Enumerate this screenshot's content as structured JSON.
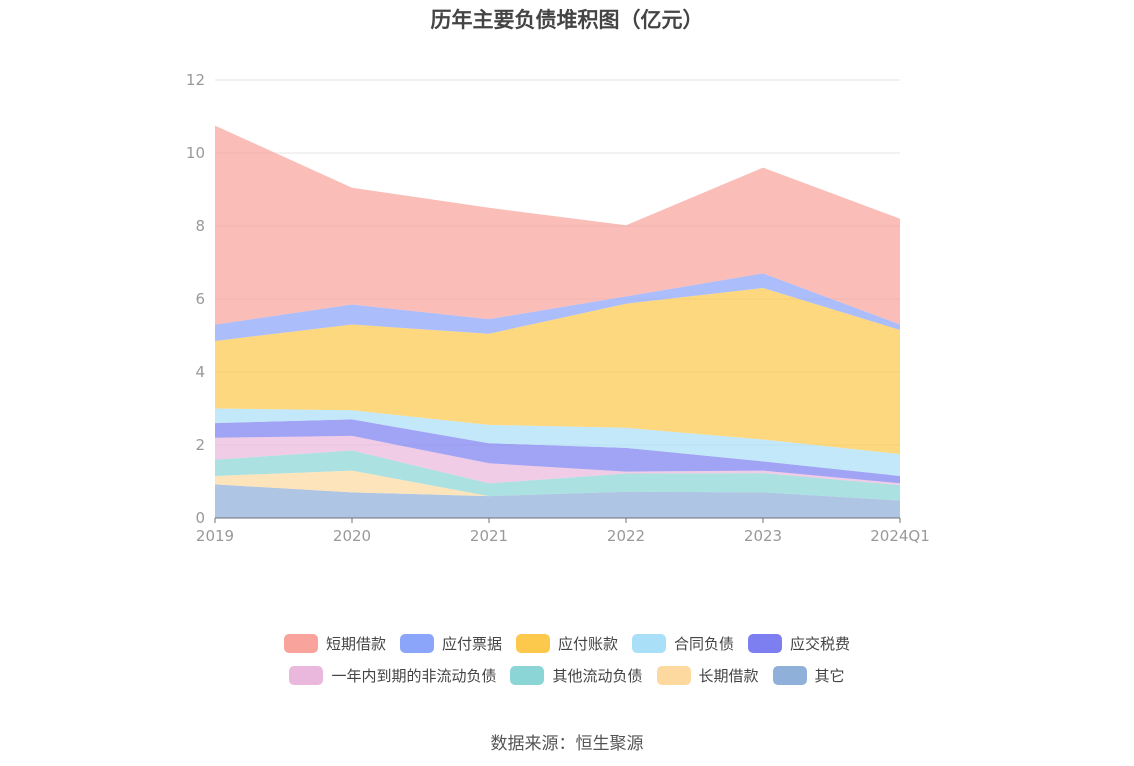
{
  "title": "历年主要负债堆积图（亿元）",
  "source": "数据来源：恒生聚源",
  "chart_data": {
    "type": "area",
    "stacked": true,
    "categories": [
      "2019",
      "2020",
      "2021",
      "2022",
      "2023",
      "2024Q1"
    ],
    "ylim": [
      0,
      12
    ],
    "yticks": [
      0,
      2,
      4,
      6,
      8,
      10,
      12
    ],
    "grid": true,
    "legend_position": "bottom",
    "series": [
      {
        "name": "其它",
        "color": "#8fb0d9",
        "values": [
          0.92,
          0.7,
          0.6,
          0.72,
          0.7,
          0.48
        ]
      },
      {
        "name": "长期借款",
        "color": "#fdd9a0",
        "values": [
          0.23,
          0.6,
          0.0,
          0.0,
          0.0,
          0.0
        ]
      },
      {
        "name": "其他流动负债",
        "color": "#8cd5d6",
        "values": [
          0.45,
          0.55,
          0.35,
          0.5,
          0.53,
          0.42
        ]
      },
      {
        "name": "一年内到期的非流动负债",
        "color": "#eab8dc",
        "values": [
          0.6,
          0.4,
          0.55,
          0.05,
          0.07,
          0.05
        ]
      },
      {
        "name": "应交税费",
        "color": "#7d7ff1",
        "values": [
          0.4,
          0.45,
          0.55,
          0.65,
          0.25,
          0.2
        ]
      },
      {
        "name": "合同负债",
        "color": "#aadff8",
        "values": [
          0.4,
          0.25,
          0.5,
          0.55,
          0.6,
          0.6
        ]
      },
      {
        "name": "应付账款",
        "color": "#fdc94c",
        "values": [
          1.85,
          2.35,
          2.5,
          3.4,
          4.15,
          3.4
        ]
      },
      {
        "name": "应付票据",
        "color": "#8ba5fa",
        "values": [
          0.45,
          0.55,
          0.4,
          0.2,
          0.4,
          0.15
        ]
      },
      {
        "name": "短期借款",
        "color": "#f8a39c",
        "values": [
          5.45,
          3.2,
          3.05,
          1.95,
          2.9,
          2.9
        ]
      }
    ]
  },
  "legend_rows": [
    [
      "短期借款",
      "应付票据",
      "应付账款",
      "合同负债",
      "应交税费"
    ],
    [
      "一年内到期的非流动负债",
      "其他流动负债",
      "长期借款",
      "其它"
    ]
  ]
}
